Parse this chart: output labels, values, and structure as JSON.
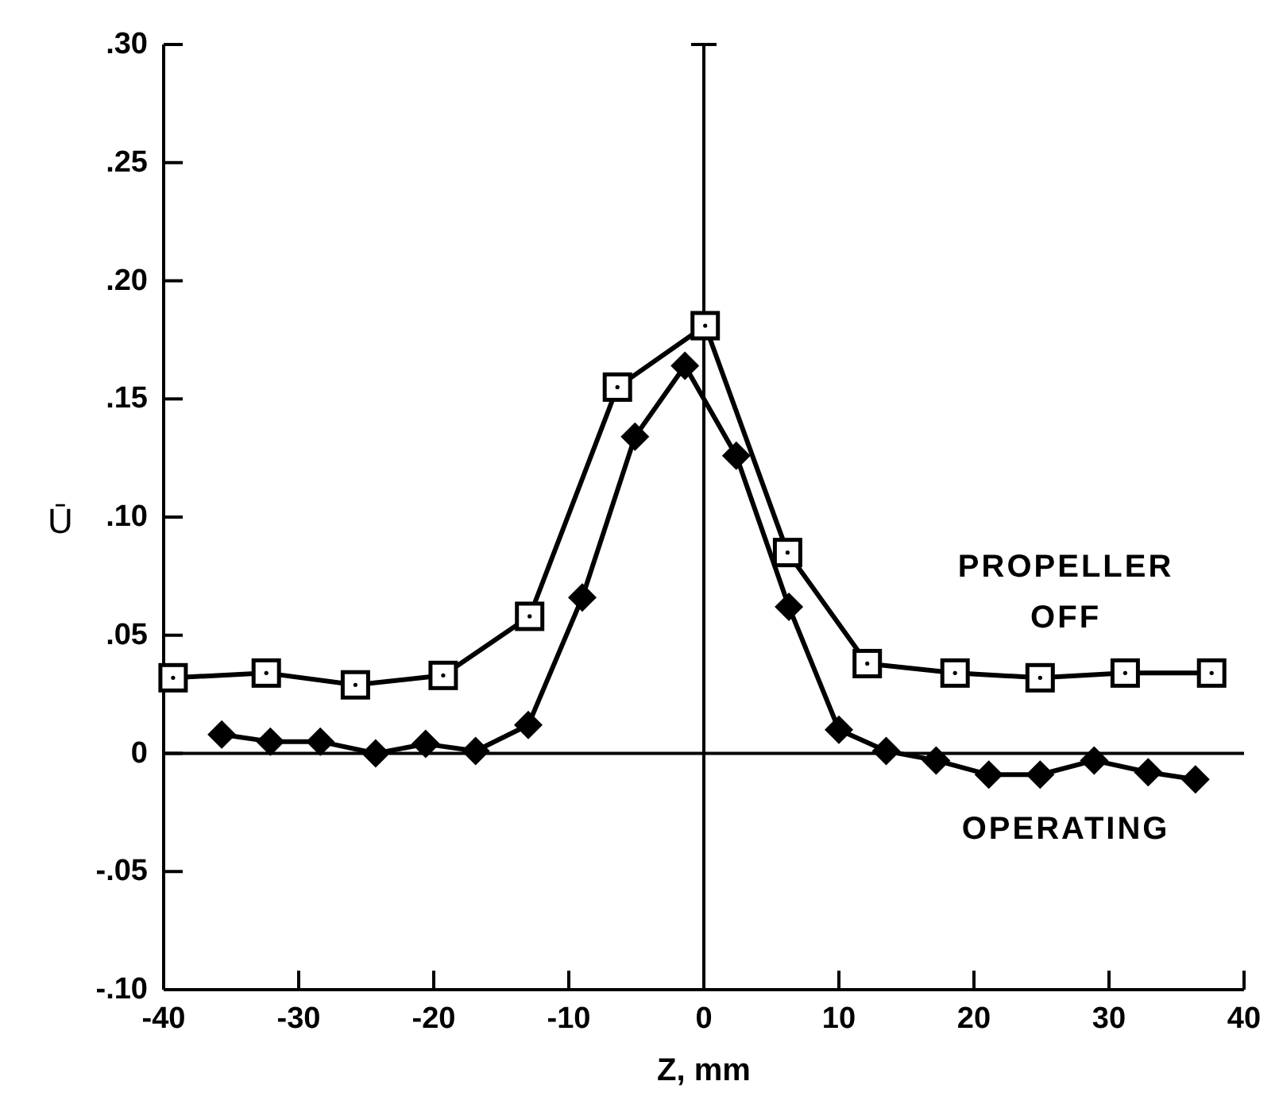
{
  "chart_data": {
    "type": "line",
    "xlabel": "Z, mm",
    "ylabel": "Ū",
    "xlim": [
      -40,
      40
    ],
    "xticks": [
      -40,
      -30,
      -20,
      -10,
      0,
      10,
      20,
      30,
      40
    ],
    "ylim": [
      -0.1,
      0.3
    ],
    "yticks": [
      {
        "value": -0.1,
        "label": "-.10"
      },
      {
        "value": -0.05,
        "label": "-.05"
      },
      {
        "value": 0,
        "label": "0"
      },
      {
        "value": 0.05,
        "label": ".05"
      },
      {
        "value": 0.1,
        "label": ".10"
      },
      {
        "value": 0.15,
        "label": ".15"
      },
      {
        "value": 0.2,
        "label": ".20"
      },
      {
        "value": 0.25,
        "label": ".25"
      },
      {
        "value": 0.3,
        "label": ".30"
      }
    ],
    "series": [
      {
        "color": "#000000",
        "marker": "square",
        "x": [
          -39.3,
          -32.4,
          -25.8,
          -19.3,
          -12.9,
          -6.4,
          0.1,
          6.2,
          12.1,
          18.6,
          24.9,
          31.2,
          37.6
        ],
        "values": [
          0.032,
          0.034,
          0.029,
          0.033,
          0.058,
          0.155,
          0.181,
          0.085,
          0.038,
          0.034,
          0.032,
          0.034,
          0.034
        ]
      },
      {
        "color": "#000000",
        "marker": "diamond",
        "x": [
          -35.7,
          -32.1,
          -28.4,
          -24.3,
          -20.6,
          -16.9,
          -13.0,
          -9.0,
          -5.1,
          -1.4,
          2.4,
          6.3,
          10.0,
          13.5,
          17.2,
          21.1,
          24.9,
          28.9,
          32.9,
          36.4
        ],
        "values": [
          0.008,
          0.005,
          0.005,
          0.0,
          0.004,
          0.001,
          0.012,
          0.066,
          0.134,
          0.164,
          0.126,
          0.062,
          0.01,
          0.001,
          -0.003,
          -0.009,
          -0.009,
          -0.003,
          -0.008,
          -0.011
        ]
      }
    ],
    "annotations": [
      "PROPELLER\nOFF",
      "OPERATING"
    ]
  }
}
